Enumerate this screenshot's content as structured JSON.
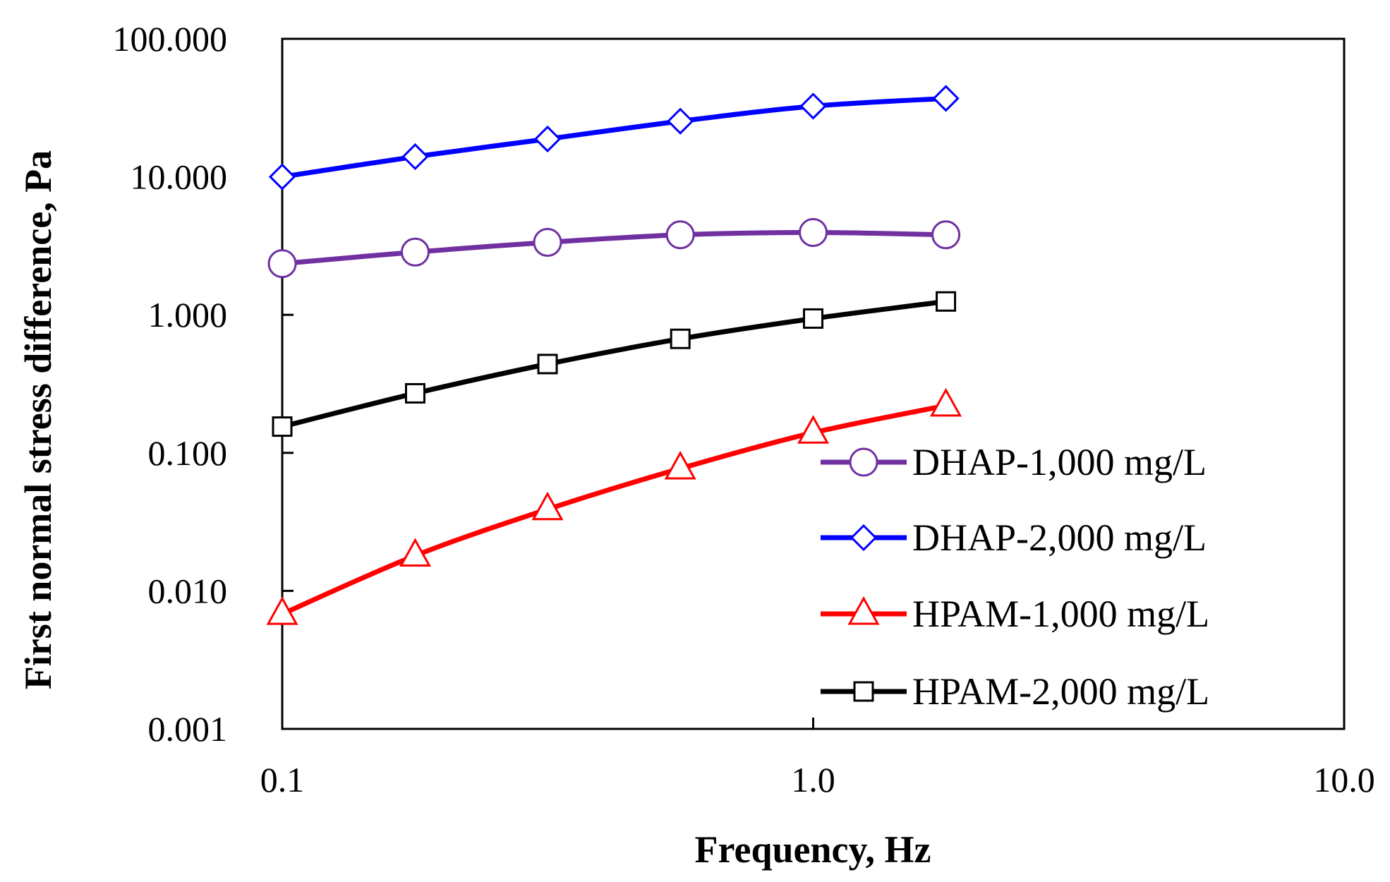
{
  "chart_data": {
    "type": "line",
    "xscale": "log",
    "yscale": "log",
    "xlim": [
      0.1,
      10
    ],
    "ylim": [
      0.001,
      100
    ],
    "xlabel": "Frequency, Hz",
    "ylabel": "First normal stress difference, Pa",
    "x_ticks": [
      {
        "value": 0.1,
        "label": "0.1"
      },
      {
        "value": 1,
        "label": "1.0"
      },
      {
        "value": 10,
        "label": "10.0"
      }
    ],
    "y_ticks": [
      {
        "value": 100,
        "label": "100.000"
      },
      {
        "value": 10,
        "label": "10.000"
      },
      {
        "value": 1,
        "label": "1.000"
      },
      {
        "value": 0.1,
        "label": "0.100"
      },
      {
        "value": 0.01,
        "label": "0.010"
      },
      {
        "value": 0.001,
        "label": "0.001"
      }
    ],
    "x": [
      0.1,
      0.178,
      0.316,
      0.562,
      1.0,
      1.778
    ],
    "series": [
      {
        "name": "DHAP-1,000 mg/L",
        "color": "#7030a0",
        "marker": "circle",
        "values": [
          2.35,
          2.85,
          3.35,
          3.8,
          3.95,
          3.8
        ]
      },
      {
        "name": "DHAP-2,000 mg/L",
        "color": "#0000ff",
        "marker": "diamond",
        "values": [
          10.0,
          14.0,
          18.8,
          25.3,
          32.5,
          37.0
        ]
      },
      {
        "name": "HPAM-1,000 mg/L",
        "color": "#ff0000",
        "marker": "triangle",
        "values": [
          0.0068,
          0.018,
          0.039,
          0.077,
          0.14,
          0.22
        ]
      },
      {
        "name": "HPAM-2,000 mg/L",
        "color": "#000000",
        "marker": "square",
        "values": [
          0.155,
          0.27,
          0.44,
          0.67,
          0.94,
          1.25
        ]
      }
    ],
    "legend": {
      "position": "bottom-right"
    }
  }
}
